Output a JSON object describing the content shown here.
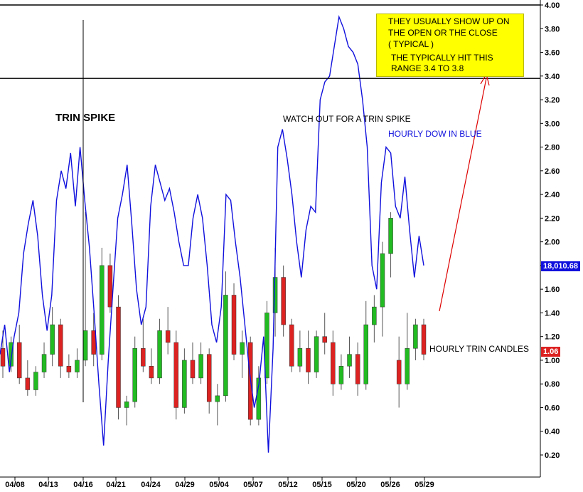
{
  "chart_data": {
    "type": "candlestick+line",
    "y_axis": {
      "ticks": [
        "4.00",
        "3.80",
        "3.60",
        "3.40",
        "3.20",
        "3.00",
        "2.80",
        "2.60",
        "2.40",
        "2.20",
        "2.00",
        "1.80",
        "1.60",
        "1.40",
        "1.20",
        "1.00",
        "0.80",
        "0.60",
        "0.40",
        "0.20"
      ],
      "range": [
        0.1,
        4.0
      ]
    },
    "x_axis": {
      "ticks": [
        "04/08",
        "04/13",
        "04/16",
        "04/21",
        "04/24",
        "04/29",
        "05/04",
        "05/07",
        "05/12",
        "05/15",
        "05/20",
        "05/26",
        "05/29"
      ]
    },
    "horizontal_lines": [
      3.38,
      4.0
    ],
    "trin_candles": {
      "name": "HOURLY TRIN CANDLES",
      "last_value": "1.06",
      "up_color": "#22bb22",
      "down_color": "#dd2222",
      "ohlc_sample": [
        [
          1.1,
          1.25,
          0.85,
          0.95
        ],
        [
          0.95,
          1.2,
          0.9,
          1.15
        ],
        [
          1.15,
          1.3,
          0.8,
          0.85
        ],
        [
          0.85,
          1.0,
          0.7,
          0.75
        ],
        [
          0.75,
          0.95,
          0.7,
          0.9
        ],
        [
          0.9,
          1.15,
          0.85,
          1.05
        ],
        [
          1.05,
          1.45,
          0.95,
          1.3
        ],
        [
          1.3,
          1.35,
          0.85,
          0.95
        ],
        [
          0.95,
          1.05,
          0.85,
          0.9
        ],
        [
          0.9,
          1.1,
          0.85,
          1.0
        ],
        [
          1.0,
          2.25,
          0.95,
          1.25
        ],
        [
          1.25,
          1.4,
          0.95,
          1.05
        ],
        [
          1.05,
          1.95,
          1.0,
          1.8
        ],
        [
          1.8,
          1.9,
          1.4,
          1.45
        ],
        [
          1.45,
          1.55,
          0.5,
          0.6
        ],
        [
          0.6,
          0.7,
          0.45,
          0.65
        ],
        [
          0.65,
          1.2,
          0.6,
          1.1
        ],
        [
          1.1,
          1.35,
          0.9,
          0.95
        ],
        [
          0.95,
          1.1,
          0.8,
          0.85
        ],
        [
          0.85,
          1.35,
          0.8,
          1.25
        ],
        [
          1.25,
          1.45,
          1.05,
          1.15
        ],
        [
          1.15,
          1.25,
          0.5,
          0.6
        ],
        [
          0.6,
          1.1,
          0.55,
          1.0
        ],
        [
          1.0,
          1.15,
          0.8,
          0.85
        ],
        [
          0.85,
          1.15,
          0.8,
          1.05
        ],
        [
          1.05,
          1.1,
          0.55,
          0.65
        ],
        [
          0.65,
          0.8,
          0.45,
          0.7
        ],
        [
          0.7,
          1.75,
          0.65,
          1.55
        ],
        [
          1.55,
          1.65,
          1.0,
          1.05
        ],
        [
          1.05,
          1.25,
          0.85,
          1.15
        ],
        [
          1.15,
          1.2,
          0.45,
          0.5
        ],
        [
          0.5,
          0.95,
          0.45,
          0.85
        ],
        [
          0.85,
          1.5,
          0.8,
          1.4
        ],
        [
          1.4,
          1.95,
          1.2,
          1.7
        ],
        [
          1.7,
          1.8,
          1.2,
          1.3
        ],
        [
          1.3,
          1.35,
          0.9,
          0.95
        ],
        [
          0.95,
          1.25,
          0.9,
          1.1
        ],
        [
          1.1,
          1.25,
          0.8,
          0.9
        ],
        [
          0.9,
          1.25,
          0.85,
          1.2
        ],
        [
          1.2,
          1.4,
          1.05,
          1.15
        ],
        [
          1.15,
          1.25,
          0.7,
          0.8
        ],
        [
          0.8,
          1.05,
          0.75,
          0.95
        ],
        [
          0.95,
          1.2,
          0.85,
          1.05
        ],
        [
          1.05,
          1.15,
          0.7,
          0.8
        ],
        [
          0.8,
          1.5,
          0.75,
          1.3
        ],
        [
          1.3,
          1.55,
          1.15,
          1.45
        ],
        [
          1.45,
          2.0,
          1.2,
          1.9
        ],
        [
          1.9,
          2.25,
          1.7,
          2.2
        ],
        [
          1.0,
          1.2,
          0.6,
          0.8
        ],
        [
          0.8,
          1.4,
          0.75,
          1.1
        ],
        [
          1.1,
          1.35,
          1.0,
          1.3
        ],
        [
          1.3,
          1.35,
          1.0,
          1.05
        ]
      ]
    },
    "dow_line": {
      "name": "HOURLY DOW IN BLUE",
      "color": "#1010dd",
      "last_value": "18,010.68",
      "y": [
        1.05,
        1.3,
        0.9,
        1.2,
        1.4,
        1.9,
        2.15,
        2.35,
        2.05,
        1.55,
        1.25,
        1.55,
        2.35,
        2.6,
        2.45,
        2.75,
        2.3,
        2.8,
        2.35,
        1.95,
        1.4,
        0.8,
        0.28,
        1.0,
        1.6,
        2.2,
        2.4,
        2.65,
        2.15,
        1.6,
        1.3,
        1.45,
        2.3,
        2.65,
        2.5,
        2.35,
        2.45,
        2.25,
        2.0,
        1.8,
        1.8,
        2.2,
        2.4,
        2.2,
        1.8,
        1.3,
        1.15,
        1.45,
        2.4,
        2.35,
        2.0,
        1.7,
        1.3,
        0.9,
        0.6,
        0.8,
        1.2,
        0.22,
        1.1,
        2.8,
        2.95,
        2.7,
        2.4,
        2.0,
        1.7,
        2.1,
        2.3,
        2.25,
        3.2,
        3.35,
        3.4,
        3.65,
        3.9,
        3.8,
        3.65,
        3.6,
        3.5,
        3.2,
        2.8,
        1.8,
        1.6,
        2.5,
        2.8,
        2.75,
        2.3,
        2.2,
        2.55,
        2.1,
        1.7,
        2.05,
        1.8
      ]
    }
  },
  "annotations": {
    "trin_spike": "TRIN SPIKE",
    "watch_out": "WATCH OUT FOR A TRIN SPIKE",
    "dow_label": "HOURLY DOW IN BLUE",
    "trin_label": "HOURLY TRIN CANDLES",
    "callout": [
      "THEY USUALLY SHOW UP ON",
      "THE OPEN OR THE CLOSE",
      "( TYPICAL )",
      "THE TYPICALLY HIT THIS",
      "RANGE 3.4 TO 3.8"
    ]
  },
  "badges": {
    "dow_price": "18,010.68",
    "trin_price": "1.06",
    "dow_color": "#1010dd",
    "trin_color": "#dd2222"
  },
  "colors": {
    "axis": "#000000",
    "callout_bg": "#ffff00",
    "arrow": "#dd0000"
  }
}
